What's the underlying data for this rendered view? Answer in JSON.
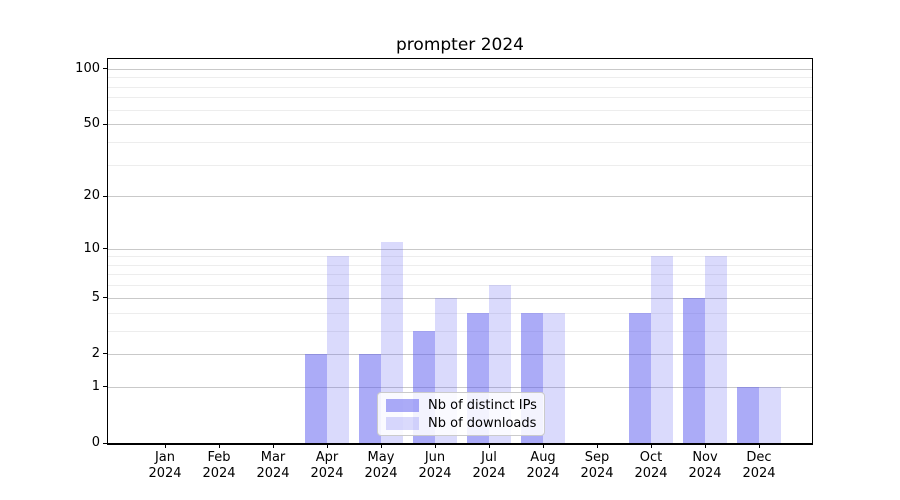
{
  "chart_data": {
    "type": "bar",
    "title": "prompter 2024",
    "categories": [
      {
        "month": "Jan",
        "year": "2024"
      },
      {
        "month": "Feb",
        "year": "2024"
      },
      {
        "month": "Mar",
        "year": "2024"
      },
      {
        "month": "Apr",
        "year": "2024"
      },
      {
        "month": "May",
        "year": "2024"
      },
      {
        "month": "Jun",
        "year": "2024"
      },
      {
        "month": "Jul",
        "year": "2024"
      },
      {
        "month": "Aug",
        "year": "2024"
      },
      {
        "month": "Sep",
        "year": "2024"
      },
      {
        "month": "Oct",
        "year": "2024"
      },
      {
        "month": "Nov",
        "year": "2024"
      },
      {
        "month": "Dec",
        "year": "2024"
      }
    ],
    "series": [
      {
        "name": "Nb of distinct IPs",
        "color": "rgba(87,87,240,0.5)",
        "values": [
          0,
          0,
          0,
          2,
          2,
          3,
          4,
          4,
          0,
          4,
          5,
          1
        ]
      },
      {
        "name": "Nb of downloads",
        "color": "rgba(87,87,240,0.22)",
        "values": [
          0,
          0,
          0,
          9,
          11,
          5,
          6,
          4,
          0,
          9,
          9,
          1
        ]
      }
    ],
    "yscale": "log1p",
    "ylim": [
      0,
      113
    ],
    "yticks": [
      0,
      1,
      2,
      5,
      10,
      20,
      50,
      100
    ],
    "yticks_minor": [
      3,
      4,
      6,
      7,
      8,
      9,
      30,
      40,
      60,
      70,
      80,
      90
    ],
    "grid": true,
    "legend_position": "lower-center"
  },
  "colors": {
    "grid_major": "#c9c9c9",
    "grid_minor": "#ededed",
    "spine": "#000000",
    "text": "#000000",
    "legend_bg": "rgba(255,255,255,0.85)",
    "legend_border": "#cbcbcb"
  }
}
